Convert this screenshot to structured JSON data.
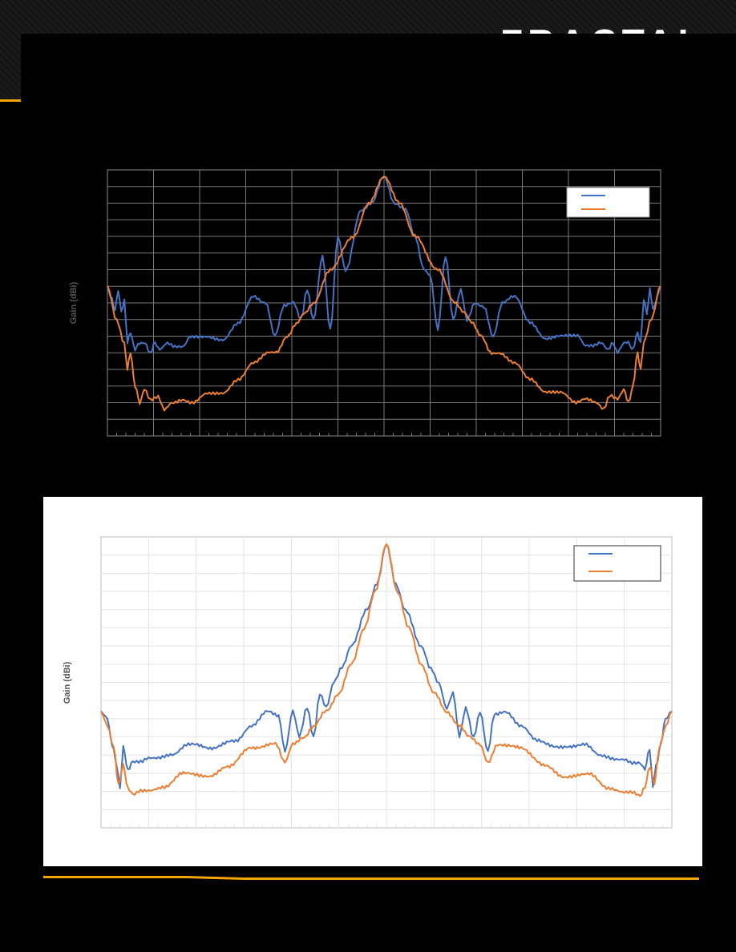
{
  "brand": {
    "name": "FRACTAL"
  },
  "colors": {
    "accent": "#f5a500",
    "series_blue": "#4472c4",
    "series_orange": "#ed7d31"
  },
  "chart_data": [
    {
      "type": "line",
      "theme": "dark",
      "ylabel": "Gain (dBi)",
      "grid": true,
      "legend_position": "top-right",
      "x_range": [
        -180,
        180
      ],
      "y_range": [
        -40,
        40
      ],
      "series": [
        {
          "name": "",
          "color": "#4472c4",
          "points": [
            [
              -180,
              5
            ],
            [
              -178,
              2
            ],
            [
              -175,
              -2
            ],
            [
              -173,
              4
            ],
            [
              -171,
              -3
            ],
            [
              -169,
              1
            ],
            [
              -167,
              -12
            ],
            [
              -165,
              -9
            ],
            [
              -162,
              -14
            ],
            [
              -159,
              -12
            ],
            [
              -156,
              -12
            ],
            [
              -152,
              -15
            ],
            [
              -149,
              -12
            ],
            [
              -146,
              -14
            ],
            [
              -141,
              -12
            ],
            [
              -136,
              -13
            ],
            [
              -131,
              -13
            ],
            [
              -126,
              -10
            ],
            [
              -116,
              -10
            ],
            [
              -105,
              -11
            ],
            [
              -95,
              -6
            ],
            [
              -85,
              2
            ],
            [
              -77,
              0
            ],
            [
              -71,
              -10
            ],
            [
              -65,
              -1
            ],
            [
              -59,
              0
            ],
            [
              -54,
              -5
            ],
            [
              -50,
              4
            ],
            [
              -46,
              -5
            ],
            [
              -40,
              14
            ],
            [
              -35,
              -8
            ],
            [
              -30,
              20
            ],
            [
              -25,
              10
            ],
            [
              -15,
              28
            ],
            [
              -8,
              30
            ],
            [
              0,
              38
            ],
            [
              7,
              30
            ],
            [
              14,
              28
            ],
            [
              20,
              20
            ],
            [
              26,
              10
            ],
            [
              30,
              8
            ],
            [
              35,
              -8
            ],
            [
              40,
              14
            ],
            [
              45,
              -5
            ],
            [
              50,
              4
            ],
            [
              54,
              -5
            ],
            [
              59,
              0
            ],
            [
              65,
              -1
            ],
            [
              71,
              -10
            ],
            [
              77,
              0
            ],
            [
              85,
              2
            ],
            [
              95,
              -6
            ],
            [
              105,
              -11
            ],
            [
              116,
              -10
            ],
            [
              126,
              -10
            ],
            [
              131,
              -13
            ],
            [
              136,
              -13
            ],
            [
              141,
              -12
            ],
            [
              146,
              -14
            ],
            [
              149,
              -12
            ],
            [
              152,
              -15
            ],
            [
              156,
              -12
            ],
            [
              159,
              -12
            ],
            [
              162,
              -14
            ],
            [
              165,
              -9
            ],
            [
              167,
              -12
            ],
            [
              169,
              1
            ],
            [
              171,
              -3
            ],
            [
              173,
              4
            ],
            [
              175,
              -2
            ],
            [
              178,
              2
            ],
            [
              180,
              5
            ]
          ]
        },
        {
          "name": "",
          "color": "#ed7d31",
          "points": [
            [
              -180,
              5
            ],
            [
              -174,
              -5
            ],
            [
              -169,
              -12
            ],
            [
              -167,
              -20
            ],
            [
              -165,
              -15
            ],
            [
              -162,
              -25
            ],
            [
              -159,
              -30
            ],
            [
              -156,
              -26
            ],
            [
              -152,
              -29
            ],
            [
              -147,
              -28
            ],
            [
              -143,
              -32
            ],
            [
              -138,
              -30
            ],
            [
              -131,
              -29
            ],
            [
              -125,
              -30
            ],
            [
              -115,
              -27
            ],
            [
              -105,
              -27
            ],
            [
              -95,
              -23
            ],
            [
              -85,
              -18
            ],
            [
              -75,
              -15
            ],
            [
              -70,
              -15
            ],
            [
              -63,
              -10
            ],
            [
              -57,
              -6
            ],
            [
              -52,
              -3
            ],
            [
              -46,
              0
            ],
            [
              -35,
              10
            ],
            [
              -20,
              20
            ],
            [
              -10,
              30
            ],
            [
              0,
              38
            ],
            [
              10,
              30
            ],
            [
              20,
              20
            ],
            [
              35,
              10
            ],
            [
              46,
              0
            ],
            [
              52,
              -3
            ],
            [
              57,
              -6
            ],
            [
              63,
              -10
            ],
            [
              70,
              -15
            ],
            [
              75,
              -15
            ],
            [
              85,
              -18
            ],
            [
              95,
              -23
            ],
            [
              105,
              -27
            ],
            [
              115,
              -27
            ],
            [
              125,
              -30
            ],
            [
              131,
              -29
            ],
            [
              138,
              -30
            ],
            [
              143,
              -32
            ],
            [
              147,
              -28
            ],
            [
              152,
              -29
            ],
            [
              156,
              -26
            ],
            [
              159,
              -30
            ],
            [
              162,
              -25
            ],
            [
              165,
              -15
            ],
            [
              167,
              -20
            ],
            [
              169,
              -12
            ],
            [
              174,
              -5
            ],
            [
              180,
              5
            ]
          ]
        }
      ]
    },
    {
      "type": "line",
      "theme": "light",
      "ylabel": "Gain (dBi)",
      "grid": true,
      "legend_position": "top-right",
      "x_range": [
        -180,
        180
      ],
      "y_range": [
        -40,
        40
      ],
      "series": [
        {
          "name": "",
          "color": "#4472c4",
          "points": [
            [
              -180,
              -8
            ],
            [
              -176,
              -10
            ],
            [
              -173,
              -17
            ],
            [
              -170,
              -23
            ],
            [
              -168,
              -29
            ],
            [
              -166,
              -18
            ],
            [
              -163,
              -24
            ],
            [
              -160,
              -22
            ],
            [
              -155,
              -22
            ],
            [
              -150,
              -21
            ],
            [
              -145,
              -21
            ],
            [
              -135,
              -20
            ],
            [
              -125,
              -17
            ],
            [
              -110,
              -18
            ],
            [
              -95,
              -16
            ],
            [
              -85,
              -12
            ],
            [
              -75,
              -8
            ],
            [
              -68,
              -9
            ],
            [
              -64,
              -19
            ],
            [
              -59,
              -8
            ],
            [
              -55,
              -15
            ],
            [
              -50,
              -7
            ],
            [
              -46,
              -15
            ],
            [
              -42,
              -3
            ],
            [
              -38,
              -7
            ],
            [
              -33,
              0
            ],
            [
              -28,
              4
            ],
            [
              -22,
              10
            ],
            [
              -12,
              20
            ],
            [
              -6,
              27
            ],
            [
              0,
              38
            ],
            [
              6,
              27
            ],
            [
              12,
              20
            ],
            [
              22,
              10
            ],
            [
              28,
              4
            ],
            [
              33,
              0
            ],
            [
              38,
              -7
            ],
            [
              42,
              -3
            ],
            [
              46,
              -15
            ],
            [
              50,
              -7
            ],
            [
              55,
              -15
            ],
            [
              59,
              -8
            ],
            [
              64,
              -19
            ],
            [
              68,
              -9
            ],
            [
              75,
              -8
            ],
            [
              85,
              -12
            ],
            [
              95,
              -16
            ],
            [
              110,
              -18
            ],
            [
              125,
              -17
            ],
            [
              135,
              -20
            ],
            [
              145,
              -21
            ],
            [
              150,
              -21
            ],
            [
              155,
              -22
            ],
            [
              160,
              -22
            ],
            [
              163,
              -24
            ],
            [
              166,
              -18
            ],
            [
              168,
              -29
            ],
            [
              170,
              -23
            ],
            [
              173,
              -17
            ],
            [
              176,
              -10
            ],
            [
              180,
              -8
            ]
          ]
        },
        {
          "name": "",
          "color": "#ed7d31",
          "points": [
            [
              -180,
              -8
            ],
            [
              -176,
              -12
            ],
            [
              -172,
              -18
            ],
            [
              -169,
              -28
            ],
            [
              -166,
              -23
            ],
            [
              -163,
              -29
            ],
            [
              -160,
              -31
            ],
            [
              -155,
              -30
            ],
            [
              -150,
              -30
            ],
            [
              -140,
              -29
            ],
            [
              -128,
              -25
            ],
            [
              -112,
              -26
            ],
            [
              -100,
              -23
            ],
            [
              -85,
              -18
            ],
            [
              -70,
              -17
            ],
            [
              -64,
              -22
            ],
            [
              -59,
              -17
            ],
            [
              -52,
              -15
            ],
            [
              -46,
              -12
            ],
            [
              -38,
              -8
            ],
            [
              -30,
              -3
            ],
            [
              -22,
              5
            ],
            [
              -14,
              15
            ],
            [
              -7,
              25
            ],
            [
              0,
              38
            ],
            [
              7,
              25
            ],
            [
              14,
              15
            ],
            [
              22,
              5
            ],
            [
              30,
              -3
            ],
            [
              38,
              -8
            ],
            [
              46,
              -12
            ],
            [
              52,
              -15
            ],
            [
              59,
              -17
            ],
            [
              64,
              -22
            ],
            [
              70,
              -17
            ],
            [
              85,
              -18
            ],
            [
              100,
              -23
            ],
            [
              112,
              -26
            ],
            [
              128,
              -25
            ],
            [
              140,
              -29
            ],
            [
              150,
              -30
            ],
            [
              155,
              -30
            ],
            [
              160,
              -31
            ],
            [
              163,
              -29
            ],
            [
              166,
              -23
            ],
            [
              169,
              -28
            ],
            [
              172,
              -18
            ],
            [
              176,
              -12
            ],
            [
              180,
              -8
            ]
          ]
        }
      ]
    }
  ]
}
